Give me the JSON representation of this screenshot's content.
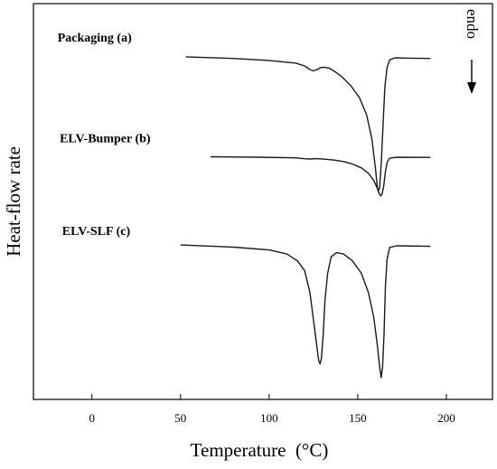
{
  "chart_data": {
    "type": "line",
    "xlabel": "Temperature  (°C)",
    "ylabel": "Heat-flow rate",
    "xlim": [
      -33,
      226
    ],
    "xticks": [
      0,
      50,
      100,
      150,
      200
    ],
    "yticks_shown": false,
    "annotation": "endo",
    "annotation_direction": "down",
    "series": [
      {
        "name": "Packaging (a)",
        "points": [
          [
            53,
            0.3
          ],
          [
            80,
            -0.2
          ],
          [
            100,
            -0.8
          ],
          [
            115,
            -1.6
          ],
          [
            120,
            -2.5
          ],
          [
            123,
            -3.6
          ],
          [
            125,
            -4.0
          ],
          [
            127,
            -3.6
          ],
          [
            129,
            -3.0
          ],
          [
            131,
            -2.9
          ],
          [
            134,
            -3.2
          ],
          [
            137,
            -4.2
          ],
          [
            141,
            -5.8
          ],
          [
            146,
            -8.5
          ],
          [
            151,
            -12.3
          ],
          [
            155,
            -17.5
          ],
          [
            158,
            -25.0
          ],
          [
            160,
            -34.0
          ],
          [
            161,
            -39.5
          ],
          [
            161.5,
            -41.0
          ],
          [
            162.3,
            -40.0
          ],
          [
            163.3,
            -32.0
          ],
          [
            164.3,
            -20.0
          ],
          [
            165.3,
            -9.0
          ],
          [
            166.5,
            -3.0
          ],
          [
            168,
            -0.6
          ],
          [
            171,
            0.0
          ],
          [
            180,
            -0.1
          ],
          [
            191,
            -0.2
          ]
        ]
      },
      {
        "name": "ELV-Bumper (b)",
        "points": [
          [
            67,
            0.5
          ],
          [
            95,
            0.0
          ],
          [
            115,
            -0.7
          ],
          [
            120,
            -1.6
          ],
          [
            123,
            -1.9
          ],
          [
            126,
            -1.5
          ],
          [
            130,
            -1.8
          ],
          [
            137,
            -3.0
          ],
          [
            142,
            -4.5
          ],
          [
            147,
            -7.0
          ],
          [
            152,
            -11.0
          ],
          [
            156,
            -16.5
          ],
          [
            159,
            -24.0
          ],
          [
            161,
            -32.0
          ],
          [
            162,
            -37.5
          ],
          [
            163,
            -40.0
          ],
          [
            163.8,
            -37.5
          ],
          [
            164.6,
            -30.0
          ],
          [
            165.6,
            -15.0
          ],
          [
            166.6,
            -5.0
          ],
          [
            168,
            -1.0
          ],
          [
            172,
            0.0
          ],
          [
            191,
            -0.2
          ]
        ]
      },
      {
        "name": "ELV-SLF (c)",
        "points": [
          [
            50,
            0.3
          ],
          [
            80,
            -0.5
          ],
          [
            100,
            -1.5
          ],
          [
            110,
            -3.0
          ],
          [
            116,
            -5.5
          ],
          [
            120,
            -9.0
          ],
          [
            123,
            -17.0
          ],
          [
            125,
            -27.0
          ],
          [
            127,
            -37.0
          ],
          [
            128,
            -42.0
          ],
          [
            128.7,
            -43.0
          ],
          [
            129.5,
            -41.0
          ],
          [
            130.5,
            -32.0
          ],
          [
            131.5,
            -20.0
          ],
          [
            133,
            -10.0
          ],
          [
            135,
            -4.0
          ],
          [
            138,
            -2.5
          ],
          [
            142,
            -3.0
          ],
          [
            147,
            -5.5
          ],
          [
            152,
            -10.0
          ],
          [
            156,
            -17.0
          ],
          [
            159,
            -26.0
          ],
          [
            161,
            -36.0
          ],
          [
            162.3,
            -44.0
          ],
          [
            163.2,
            -48.0
          ],
          [
            164,
            -44.0
          ],
          [
            164.8,
            -32.0
          ],
          [
            165.6,
            -15.0
          ],
          [
            166.5,
            -5.0
          ],
          [
            168,
            -0.6
          ],
          [
            172,
            0.0
          ],
          [
            191,
            -0.2
          ]
        ]
      }
    ]
  }
}
